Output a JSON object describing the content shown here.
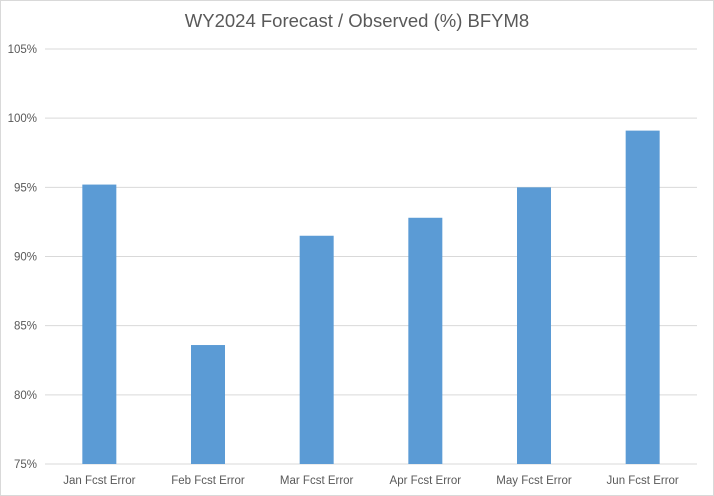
{
  "chart_data": {
    "type": "bar",
    "title": "WY2024 Forecast / Observed (%) BFYM8",
    "categories": [
      "Jan Fcst Error",
      "Feb Fcst Error",
      "Mar Fcst Error",
      "Apr Fcst Error",
      "May Fcst Error",
      "Jun Fcst Error"
    ],
    "values": [
      95.2,
      83.6,
      91.5,
      92.8,
      95.0,
      99.1
    ],
    "ylim": [
      75,
      105
    ],
    "yticks": [
      75,
      80,
      85,
      90,
      95,
      100,
      105
    ],
    "ytick_labels": [
      "75%",
      "80%",
      "85%",
      "90%",
      "95%",
      "100%",
      "105%"
    ],
    "xlabel": "",
    "ylabel": "",
    "grid": true,
    "legend": "none",
    "bar_color": "#5b9bd5",
    "grid_color": "#d9d9d9",
    "text_color": "#595959"
  }
}
